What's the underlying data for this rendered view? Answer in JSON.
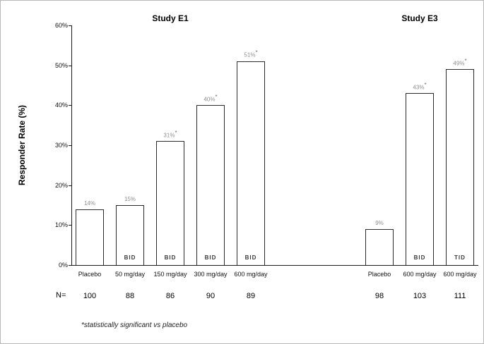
{
  "chart_data": {
    "type": "bar",
    "title": "",
    "ylabel": "Responder Rate (%)",
    "xlabel": "",
    "ylim": [
      0,
      60
    ],
    "ytick_step": 10,
    "ytick_suffix": "%",
    "grid": false,
    "legend": false,
    "bar_fill": "#ffffff",
    "bar_border": "#2a2a2a",
    "value_label_color": "#8f8f8f",
    "n_label": "N=",
    "footnote": "*statistically significant vs placebo",
    "groups": [
      {
        "title": "Study E1",
        "bars": [
          {
            "category": "Placebo",
            "value": 14,
            "label": "14%",
            "significant": false,
            "n": "100",
            "dose_schedule": ""
          },
          {
            "category": "50 mg/day",
            "value": 15,
            "label": "15%",
            "significant": false,
            "n": "88",
            "dose_schedule": "BID"
          },
          {
            "category": "150 mg/day",
            "value": 31,
            "label": "31%",
            "significant": true,
            "n": "86",
            "dose_schedule": "BID"
          },
          {
            "category": "300 mg/day",
            "value": 40,
            "label": "40%",
            "significant": true,
            "n": "90",
            "dose_schedule": "BID"
          },
          {
            "category": "600 mg/day",
            "value": 51,
            "label": "51%",
            "significant": true,
            "n": "89",
            "dose_schedule": "BID"
          }
        ]
      },
      {
        "title": "Study E3",
        "bars": [
          {
            "category": "Placebo",
            "value": 9,
            "label": "9%",
            "significant": false,
            "n": "98",
            "dose_schedule": ""
          },
          {
            "category": "600 mg/day",
            "value": 43,
            "label": "43%",
            "significant": true,
            "n": "103",
            "dose_schedule": "BID"
          },
          {
            "category": "600 mg/day",
            "value": 49,
            "label": "49%",
            "significant": true,
            "n": "111",
            "dose_schedule": "TID"
          }
        ]
      }
    ]
  }
}
